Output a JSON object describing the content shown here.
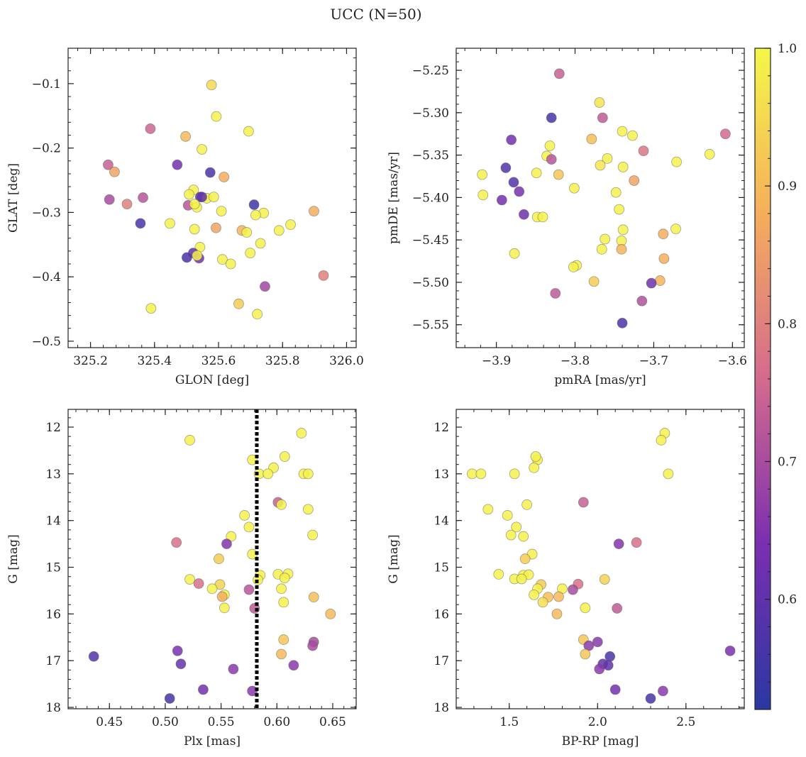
{
  "figure": {
    "title": "UCC (N=50)"
  },
  "colorbar": {
    "min": 0.52,
    "max": 1.0,
    "ticks": [
      0.6,
      0.7,
      0.8,
      0.9,
      1.0
    ],
    "tick_labels": [
      "0.6",
      "0.7",
      "0.8",
      "0.9",
      "1.0"
    ],
    "colormap": "plasma"
  },
  "chart_data": [
    {
      "type": "scatter",
      "xlabel": "GLON [deg]",
      "ylabel": "GLAT [deg]",
      "xlim": [
        325.13,
        326.03
      ],
      "ylim": [
        -0.51,
        -0.045
      ],
      "xticks": [
        325.2,
        325.4,
        325.6,
        325.8,
        326.0
      ],
      "xtick_labels": [
        "325.2",
        "325.4",
        "325.6",
        "325.8",
        "326.0"
      ],
      "yticks": [
        -0.5,
        -0.4,
        -0.3,
        -0.2,
        -0.1
      ],
      "ytick_labels": [
        "−0.5",
        "−0.4",
        "−0.3",
        "−0.2",
        "−0.1"
      ],
      "points": [
        [
          325.578,
          -0.102,
          0.95
        ],
        [
          325.593,
          -0.151,
          0.99
        ],
        [
          325.694,
          -0.174,
          0.99
        ],
        [
          325.387,
          -0.17,
          0.75
        ],
        [
          325.497,
          -0.182,
          0.9
        ],
        [
          325.548,
          -0.202,
          0.99
        ],
        [
          325.255,
          -0.226,
          0.74
        ],
        [
          325.275,
          -0.237,
          0.86
        ],
        [
          325.471,
          -0.226,
          0.63
        ],
        [
          325.574,
          -0.238,
          0.57
        ],
        [
          325.617,
          -0.245,
          0.88
        ],
        [
          325.522,
          -0.265,
          0.99
        ],
        [
          325.508,
          -0.272,
          0.99
        ],
        [
          325.543,
          -0.276,
          0.6
        ],
        [
          325.563,
          -0.278,
          0.99
        ],
        [
          325.585,
          -0.276,
          0.99
        ],
        [
          325.259,
          -0.28,
          0.7
        ],
        [
          325.364,
          -0.277,
          0.72
        ],
        [
          325.314,
          -0.287,
          0.8
        ],
        [
          325.505,
          -0.289,
          0.72
        ],
        [
          325.532,
          -0.292,
          0.99
        ],
        [
          325.711,
          -0.288,
          0.55
        ],
        [
          325.525,
          -0.287,
          0.99
        ],
        [
          325.609,
          -0.298,
          0.99
        ],
        [
          325.898,
          -0.298,
          0.88
        ],
        [
          325.741,
          -0.301,
          0.99
        ],
        [
          325.716,
          -0.304,
          0.99
        ],
        [
          325.356,
          -0.317,
          0.57
        ],
        [
          325.448,
          -0.317,
          0.99
        ],
        [
          325.525,
          -0.326,
          0.99
        ],
        [
          325.592,
          -0.324,
          0.86
        ],
        [
          325.673,
          -0.328,
          0.89
        ],
        [
          325.688,
          -0.331,
          0.99
        ],
        [
          325.789,
          -0.328,
          0.99
        ],
        [
          325.825,
          -0.319,
          0.99
        ],
        [
          325.731,
          -0.348,
          0.99
        ],
        [
          325.542,
          -0.354,
          0.99
        ],
        [
          325.521,
          -0.363,
          0.6
        ],
        [
          325.501,
          -0.37,
          0.57
        ],
        [
          325.539,
          -0.371,
          0.63
        ],
        [
          325.533,
          -0.367,
          0.99
        ],
        [
          325.612,
          -0.373,
          0.99
        ],
        [
          325.638,
          -0.38,
          0.99
        ],
        [
          325.699,
          -0.363,
          0.99
        ],
        [
          325.928,
          -0.398,
          0.8
        ],
        [
          325.745,
          -0.415,
          0.69
        ],
        [
          325.389,
          -0.449,
          0.99
        ],
        [
          325.663,
          -0.442,
          0.93
        ],
        [
          325.721,
          -0.458,
          0.99
        ],
        [
          325.548,
          -0.276,
          0.6
        ]
      ]
    },
    {
      "type": "scatter",
      "xlabel": "pmRA [mas/yr]",
      "ylabel": "pmDE [mas/yr]",
      "xlim": [
        -3.951,
        -3.585
      ],
      "ylim": [
        -5.577,
        -5.224
      ],
      "xticks": [
        -3.9,
        -3.8,
        -3.7,
        -3.6
      ],
      "xtick_labels": [
        "−3.9",
        "−3.8",
        "−3.7",
        "−3.6"
      ],
      "yticks": [
        -5.55,
        -5.5,
        -5.45,
        -5.4,
        -5.35,
        -5.3,
        -5.25
      ],
      "ytick_labels": [
        "−5.55",
        "−5.50",
        "−5.45",
        "−5.40",
        "−5.35",
        "−5.30",
        "−5.25"
      ],
      "points": [
        [
          -3.82,
          -5.254,
          0.74
        ],
        [
          -3.83,
          -5.306,
          0.56
        ],
        [
          -3.769,
          -5.288,
          0.97
        ],
        [
          -3.765,
          -5.306,
          0.73
        ],
        [
          -3.881,
          -5.332,
          0.63
        ],
        [
          -3.779,
          -5.331,
          0.91
        ],
        [
          -3.74,
          -5.322,
          0.99
        ],
        [
          -3.727,
          -5.327,
          0.99
        ],
        [
          -3.609,
          -5.325,
          0.76
        ],
        [
          -3.832,
          -5.339,
          0.99
        ],
        [
          -3.836,
          -5.351,
          0.99
        ],
        [
          -3.83,
          -5.355,
          0.72
        ],
        [
          -3.759,
          -5.354,
          0.99
        ],
        [
          -3.713,
          -5.345,
          0.78
        ],
        [
          -3.629,
          -5.349,
          0.99
        ],
        [
          -3.888,
          -5.365,
          0.58
        ],
        [
          -3.768,
          -5.362,
          0.97
        ],
        [
          -3.739,
          -5.364,
          0.99
        ],
        [
          -3.671,
          -5.358,
          0.99
        ],
        [
          -3.918,
          -5.373,
          0.99
        ],
        [
          -3.849,
          -5.371,
          0.99
        ],
        [
          -3.821,
          -5.373,
          0.92
        ],
        [
          -3.878,
          -5.382,
          0.58
        ],
        [
          -3.725,
          -5.38,
          0.86
        ],
        [
          -3.917,
          -5.397,
          0.99
        ],
        [
          -3.871,
          -5.393,
          0.64
        ],
        [
          -3.801,
          -5.389,
          0.99
        ],
        [
          -3.748,
          -5.394,
          0.99
        ],
        [
          -3.893,
          -5.403,
          0.63
        ],
        [
          -3.744,
          -5.414,
          0.99
        ],
        [
          -3.865,
          -5.42,
          0.62
        ],
        [
          -3.848,
          -5.423,
          0.99
        ],
        [
          -3.841,
          -5.423,
          0.99
        ],
        [
          -3.739,
          -5.438,
          0.99
        ],
        [
          -3.688,
          -5.443,
          0.88
        ],
        [
          -3.672,
          -5.437,
          0.99
        ],
        [
          -3.877,
          -5.466,
          0.99
        ],
        [
          -3.762,
          -5.449,
          0.99
        ],
        [
          -3.741,
          -5.451,
          0.99
        ],
        [
          -3.766,
          -5.461,
          0.99
        ],
        [
          -3.741,
          -5.461,
          0.89
        ],
        [
          -3.687,
          -5.472,
          0.88
        ],
        [
          -3.798,
          -5.48,
          0.99
        ],
        [
          -3.802,
          -5.482,
          0.99
        ],
        [
          -3.776,
          -5.499,
          0.93
        ],
        [
          -3.692,
          -5.498,
          0.89
        ],
        [
          -3.703,
          -5.501,
          0.62
        ],
        [
          -3.825,
          -5.513,
          0.73
        ],
        [
          -3.715,
          -5.522,
          0.71
        ],
        [
          -3.74,
          -5.548,
          0.57
        ]
      ]
    },
    {
      "type": "scatter",
      "xlabel": "Plx [mas]",
      "ylabel": "G [mag]",
      "xlim": [
        0.413,
        0.671
      ],
      "ylim": [
        18.03,
        11.62
      ],
      "y_inverted": true,
      "xticks": [
        0.45,
        0.5,
        0.55,
        0.6,
        0.65
      ],
      "xtick_labels": [
        "0.45",
        "0.50",
        "0.55",
        "0.60",
        "0.65"
      ],
      "yticks": [
        12,
        13,
        14,
        15,
        16,
        17,
        18
      ],
      "ytick_labels": [
        "12",
        "13",
        "14",
        "15",
        "16",
        "17",
        "18"
      ],
      "vline": {
        "x": 0.582,
        "style": "dotted"
      },
      "points": [
        [
          0.622,
          12.13,
          0.99
        ],
        [
          0.522,
          12.28,
          0.99
        ],
        [
          0.578,
          12.7,
          0.99
        ],
        [
          0.607,
          12.63,
          0.99
        ],
        [
          0.597,
          12.87,
          0.99
        ],
        [
          0.584,
          13.0,
          0.99
        ],
        [
          0.592,
          13.0,
          0.99
        ],
        [
          0.624,
          13.0,
          0.99
        ],
        [
          0.628,
          13.0,
          0.99
        ],
        [
          0.601,
          13.61,
          0.74
        ],
        [
          0.604,
          13.66,
          0.99
        ],
        [
          0.628,
          13.76,
          0.99
        ],
        [
          0.571,
          13.89,
          0.99
        ],
        [
          0.575,
          14.14,
          0.99
        ],
        [
          0.559,
          14.34,
          0.99
        ],
        [
          0.632,
          14.31,
          0.99
        ],
        [
          0.51,
          14.47,
          0.77
        ],
        [
          0.555,
          14.5,
          0.65
        ],
        [
          0.578,
          14.72,
          0.99
        ],
        [
          0.548,
          14.82,
          0.93
        ],
        [
          0.601,
          15.15,
          0.99
        ],
        [
          0.61,
          15.14,
          0.99
        ],
        [
          0.585,
          15.17,
          0.99
        ],
        [
          0.522,
          15.26,
          0.99
        ],
        [
          0.583,
          15.27,
          0.99
        ],
        [
          0.607,
          15.23,
          0.99
        ],
        [
          0.53,
          15.35,
          0.77
        ],
        [
          0.549,
          15.37,
          0.94
        ],
        [
          0.542,
          15.46,
          0.99
        ],
        [
          0.604,
          15.46,
          0.99
        ],
        [
          0.575,
          15.48,
          0.72
        ],
        [
          0.553,
          15.59,
          0.99
        ],
        [
          0.551,
          15.63,
          0.88
        ],
        [
          0.633,
          15.64,
          0.91
        ],
        [
          0.606,
          15.75,
          0.99
        ],
        [
          0.553,
          15.87,
          0.99
        ],
        [
          0.58,
          15.88,
          0.73
        ],
        [
          0.648,
          16.0,
          0.9
        ],
        [
          0.606,
          16.55,
          0.92
        ],
        [
          0.633,
          16.6,
          0.7
        ],
        [
          0.632,
          16.68,
          0.7
        ],
        [
          0.511,
          16.79,
          0.64
        ],
        [
          0.604,
          16.86,
          0.9
        ],
        [
          0.436,
          16.91,
          0.58
        ],
        [
          0.514,
          17.07,
          0.61
        ],
        [
          0.615,
          17.1,
          0.66
        ],
        [
          0.561,
          17.18,
          0.66
        ],
        [
          0.534,
          17.62,
          0.63
        ],
        [
          0.578,
          17.65,
          0.66
        ],
        [
          0.504,
          17.81,
          0.56
        ]
      ]
    },
    {
      "type": "scatter",
      "xlabel": "BP-RP [mag]",
      "ylabel": "G [mag]",
      "xlim": [
        1.2,
        2.83
      ],
      "ylim": [
        18.03,
        11.62
      ],
      "y_inverted": true,
      "xticks": [
        1.5,
        2.0,
        2.5
      ],
      "xtick_labels": [
        "1.5",
        "2.0",
        "2.5"
      ],
      "yticks": [
        12,
        13,
        14,
        15,
        16,
        17,
        18
      ],
      "ytick_labels": [
        "12",
        "13",
        "14",
        "15",
        "16",
        "17",
        "18"
      ],
      "points": [
        [
          2.38,
          12.13,
          0.99
        ],
        [
          2.36,
          12.28,
          0.99
        ],
        [
          1.66,
          12.7,
          0.99
        ],
        [
          1.65,
          12.63,
          0.99
        ],
        [
          1.64,
          12.87,
          0.99
        ],
        [
          1.29,
          13.0,
          0.99
        ],
        [
          1.34,
          13.0,
          0.99
        ],
        [
          1.53,
          13.0,
          0.99
        ],
        [
          2.4,
          13.0,
          0.99
        ],
        [
          1.92,
          13.61,
          0.74
        ],
        [
          1.6,
          13.66,
          0.99
        ],
        [
          1.38,
          13.76,
          0.99
        ],
        [
          1.49,
          13.89,
          0.99
        ],
        [
          1.54,
          14.14,
          0.99
        ],
        [
          1.51,
          14.31,
          0.99
        ],
        [
          1.58,
          14.34,
          0.99
        ],
        [
          2.22,
          14.47,
          0.77
        ],
        [
          2.12,
          14.5,
          0.65
        ],
        [
          1.63,
          14.72,
          0.99
        ],
        [
          1.59,
          14.82,
          0.93
        ],
        [
          1.44,
          15.15,
          0.99
        ],
        [
          1.58,
          15.17,
          0.99
        ],
        [
          1.61,
          15.16,
          0.99
        ],
        [
          1.53,
          15.25,
          0.99
        ],
        [
          1.57,
          15.25,
          0.99
        ],
        [
          2.04,
          15.26,
          0.94
        ],
        [
          1.89,
          15.36,
          0.77
        ],
        [
          1.68,
          15.37,
          0.93
        ],
        [
          1.8,
          15.46,
          0.99
        ],
        [
          1.66,
          15.46,
          0.99
        ],
        [
          1.86,
          15.48,
          0.7
        ],
        [
          1.64,
          15.59,
          0.99
        ],
        [
          1.78,
          15.63,
          0.9
        ],
        [
          1.72,
          15.64,
          0.91
        ],
        [
          1.69,
          15.75,
          0.96
        ],
        [
          1.93,
          15.87,
          0.99
        ],
        [
          2.11,
          15.88,
          0.73
        ],
        [
          1.77,
          16.0,
          0.9
        ],
        [
          1.92,
          16.55,
          0.92
        ],
        [
          2.0,
          16.6,
          0.66
        ],
        [
          1.95,
          16.68,
          0.66
        ],
        [
          2.75,
          16.79,
          0.64
        ],
        [
          1.93,
          16.86,
          0.92
        ],
        [
          2.07,
          16.91,
          0.57
        ],
        [
          2.03,
          17.07,
          0.61
        ],
        [
          2.06,
          17.1,
          0.6
        ],
        [
          2.01,
          17.18,
          0.66
        ],
        [
          2.1,
          17.62,
          0.63
        ],
        [
          2.37,
          17.65,
          0.66
        ],
        [
          2.3,
          17.81,
          0.56
        ]
      ]
    }
  ]
}
